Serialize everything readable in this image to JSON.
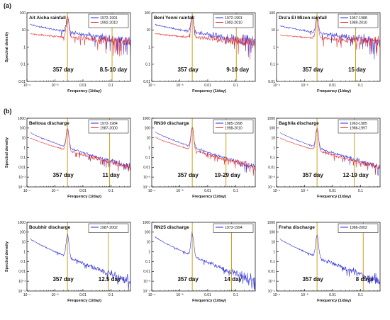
{
  "section_labels": [
    "(a)",
    "(b)"
  ],
  "x_axis_label": "Frequency (1/day)",
  "y_axis_label": "Spectral density",
  "colors": {
    "series_1": "#2b2bd6",
    "series_2": "#e82020",
    "marker_line": "#c8960a"
  },
  "chart_data": [
    {
      "type": "line",
      "title": "Ait Aicha rainfall",
      "xlabel": "Frequency (1/day)",
      "ylabel": "Spectral density",
      "x_scale": "log",
      "y_scale": "log",
      "xlim": [
        0.0001,
        0.5
      ],
      "ylim": [
        0.01,
        100
      ],
      "x_ticks": [
        "10⁻⁴",
        "10⁻³",
        "0.01",
        "0.1"
      ],
      "y_ticks": [
        "0.01",
        "0.1",
        "1",
        "10",
        "100"
      ],
      "series": [
        {
          "name": "1972-1991",
          "color": "#2b2bd6"
        },
        {
          "name": "1992-2010",
          "color": "#e82020"
        }
      ],
      "peak_value": 60,
      "end_value": 2,
      "annotations": [
        {
          "label": "357 day",
          "frequency": 0.0028
        },
        {
          "label": "8.5-10 day",
          "frequency": 0.11
        }
      ]
    },
    {
      "type": "line",
      "title": "Beni Yenni rainfall",
      "xlabel": "Frequency (1/day)",
      "ylabel": "",
      "x_scale": "log",
      "y_scale": "log",
      "xlim": [
        0.0001,
        0.5
      ],
      "ylim": [
        0.01,
        100
      ],
      "x_ticks": [
        "10⁻⁴",
        "10⁻³",
        "0.01",
        "0.1"
      ],
      "y_ticks": [
        "0.01",
        "0.1",
        "1",
        "10",
        "100"
      ],
      "series": [
        {
          "name": "1972-1991",
          "color": "#2b2bd6"
        },
        {
          "name": "1992-2010",
          "color": "#e82020"
        }
      ],
      "peak_value": 60,
      "end_value": 2,
      "annotations": [
        {
          "label": "357 day",
          "frequency": 0.0028
        },
        {
          "label": "9-10 day",
          "frequency": 0.105
        }
      ]
    },
    {
      "type": "line",
      "title": "Dra'a El Mizen rainfall",
      "xlabel": "Frequency (1/day)",
      "ylabel": "",
      "x_scale": "log",
      "y_scale": "log",
      "xlim": [
        0.0001,
        0.5
      ],
      "ylim": [
        0.01,
        100
      ],
      "x_ticks": [
        "10⁻⁴",
        "10⁻³",
        "0.01",
        "0.1"
      ],
      "y_ticks": [
        "0.01",
        "0.1",
        "1",
        "10",
        "100"
      ],
      "series": [
        {
          "name": "1967-1988",
          "color": "#2b2bd6"
        },
        {
          "name": "1989-2010",
          "color": "#e82020"
        }
      ],
      "peak_value": 50,
      "end_value": 2,
      "annotations": [
        {
          "label": "357 day",
          "frequency": 0.0028
        },
        {
          "label": "15 day",
          "frequency": 0.067
        }
      ]
    },
    {
      "type": "line",
      "title": "Belloua discharge",
      "xlabel": "Frequency (1/day)",
      "ylabel": "Spectral density",
      "x_scale": "log",
      "y_scale": "log",
      "xlim": [
        0.0001,
        0.5
      ],
      "ylim": [
        0.0001,
        1000
      ],
      "x_ticks": [
        "10⁻⁴",
        "10⁻³",
        "0.01",
        "0.1"
      ],
      "y_ticks": [
        "10⁻⁴",
        "10⁻³",
        "0.01",
        "0.1",
        "1",
        "10",
        "100",
        "1000"
      ],
      "series": [
        {
          "name": "1972-1984",
          "color": "#2b2bd6"
        },
        {
          "name": "1987-2000",
          "color": "#e82020"
        }
      ],
      "peak_value": 100,
      "end_value": 0.01,
      "annotations": [
        {
          "label": "357 day",
          "frequency": 0.0028
        },
        {
          "label": "11 day",
          "frequency": 0.09
        }
      ]
    },
    {
      "type": "line",
      "title": "RN30 discharge",
      "xlabel": "Frequency (1/day)",
      "ylabel": "",
      "x_scale": "log",
      "y_scale": "log",
      "xlim": [
        0.0001,
        0.5
      ],
      "ylim": [
        0.0001,
        1000
      ],
      "x_ticks": [
        "10⁻⁴",
        "10⁻³",
        "0.01",
        "0.1"
      ],
      "y_ticks": [
        "10⁻⁴",
        "10⁻³",
        "0.01",
        "0.1",
        "1",
        "10",
        "100",
        "1000"
      ],
      "series": [
        {
          "name": "1985-1998",
          "color": "#2b2bd6"
        },
        {
          "name": "1998-2010",
          "color": "#e82020"
        }
      ],
      "peak_value": 120,
      "end_value": 0.01,
      "annotations": [
        {
          "label": "357 day",
          "frequency": 0.0028
        },
        {
          "label": "19-29 day",
          "frequency": 0.045
        }
      ]
    },
    {
      "type": "line",
      "title": "Baghlia discharge",
      "xlabel": "Frequency (1/day)",
      "ylabel": "",
      "x_scale": "log",
      "y_scale": "log",
      "xlim": [
        0.0001,
        0.5
      ],
      "ylim": [
        0.0001,
        1000
      ],
      "x_ticks": [
        "10⁻⁴",
        "10⁻³",
        "0.01",
        "0.1"
      ],
      "y_ticks": [
        "10⁻⁴",
        "10⁻³",
        "0.01",
        "0.1",
        "1",
        "10",
        "100",
        "1000"
      ],
      "series": [
        {
          "name": "1963-1985",
          "color": "#2b2bd6"
        },
        {
          "name": "1986-1997",
          "color": "#e82020"
        }
      ],
      "peak_value": 100,
      "end_value": 0.01,
      "annotations": [
        {
          "label": "357 day",
          "frequency": 0.0028
        },
        {
          "label": "12-19 day",
          "frequency": 0.06
        }
      ]
    },
    {
      "type": "line",
      "title": "Boubhir discharge",
      "xlabel": "Frequency (1/day)",
      "ylabel": "Spectral density",
      "x_scale": "log",
      "y_scale": "log",
      "xlim": [
        0.0001,
        0.5
      ],
      "ylim": [
        0.0001,
        1000
      ],
      "x_ticks": [
        "10⁻⁴",
        "10⁻³",
        "0.01",
        "0.1"
      ],
      "y_ticks": [
        "10⁻⁴",
        "10⁻³",
        "0.01",
        "0.1",
        "1",
        "10",
        "100",
        "1000"
      ],
      "series": [
        {
          "name": "1987-2002",
          "color": "#2b2bd6"
        }
      ],
      "peak_value": 60,
      "end_value": 0.001,
      "annotations": [
        {
          "label": "357 day",
          "frequency": 0.0028
        },
        {
          "label": "12.5 day",
          "frequency": 0.08
        }
      ]
    },
    {
      "type": "line",
      "title": "RN25 discharge",
      "xlabel": "Frequency (1/day)",
      "ylabel": "",
      "x_scale": "log",
      "y_scale": "log",
      "xlim": [
        0.0001,
        0.5
      ],
      "ylim": [
        0.0001,
        1000
      ],
      "x_ticks": [
        "10⁻⁴",
        "10⁻³",
        "0.01",
        "0.1"
      ],
      "y_ticks": [
        "10⁻⁴",
        "10⁻³",
        "0.01",
        "0.1",
        "1",
        "10",
        "100",
        "1000"
      ],
      "series": [
        {
          "name": "1973-1994",
          "color": "#2b2bd6"
        }
      ],
      "peak_value": 100,
      "end_value": 0.001,
      "annotations": [
        {
          "label": "357 day",
          "frequency": 0.0028
        },
        {
          "label": "14 day",
          "frequency": 0.071
        }
      ]
    },
    {
      "type": "line",
      "title": "Freha discharge",
      "xlabel": "Frequency (1/day)",
      "ylabel": "",
      "x_scale": "log",
      "y_scale": "log",
      "xlim": [
        0.0001,
        0.5
      ],
      "ylim": [
        0.0001,
        1000
      ],
      "x_ticks": [
        "10⁻⁴",
        "10⁻³",
        "0.01",
        "0.1"
      ],
      "y_ticks": [
        "10⁻⁴",
        "10⁻³",
        "0.01",
        "0.1",
        "1",
        "10",
        "100",
        "1000"
      ],
      "series": [
        {
          "name": "1986-2002",
          "color": "#2b2bd6"
        }
      ],
      "peak_value": 60,
      "end_value": 0.001,
      "annotations": [
        {
          "label": "357 day",
          "frequency": 0.0028
        },
        {
          "label": "8 days",
          "frequency": 0.125
        }
      ]
    }
  ]
}
